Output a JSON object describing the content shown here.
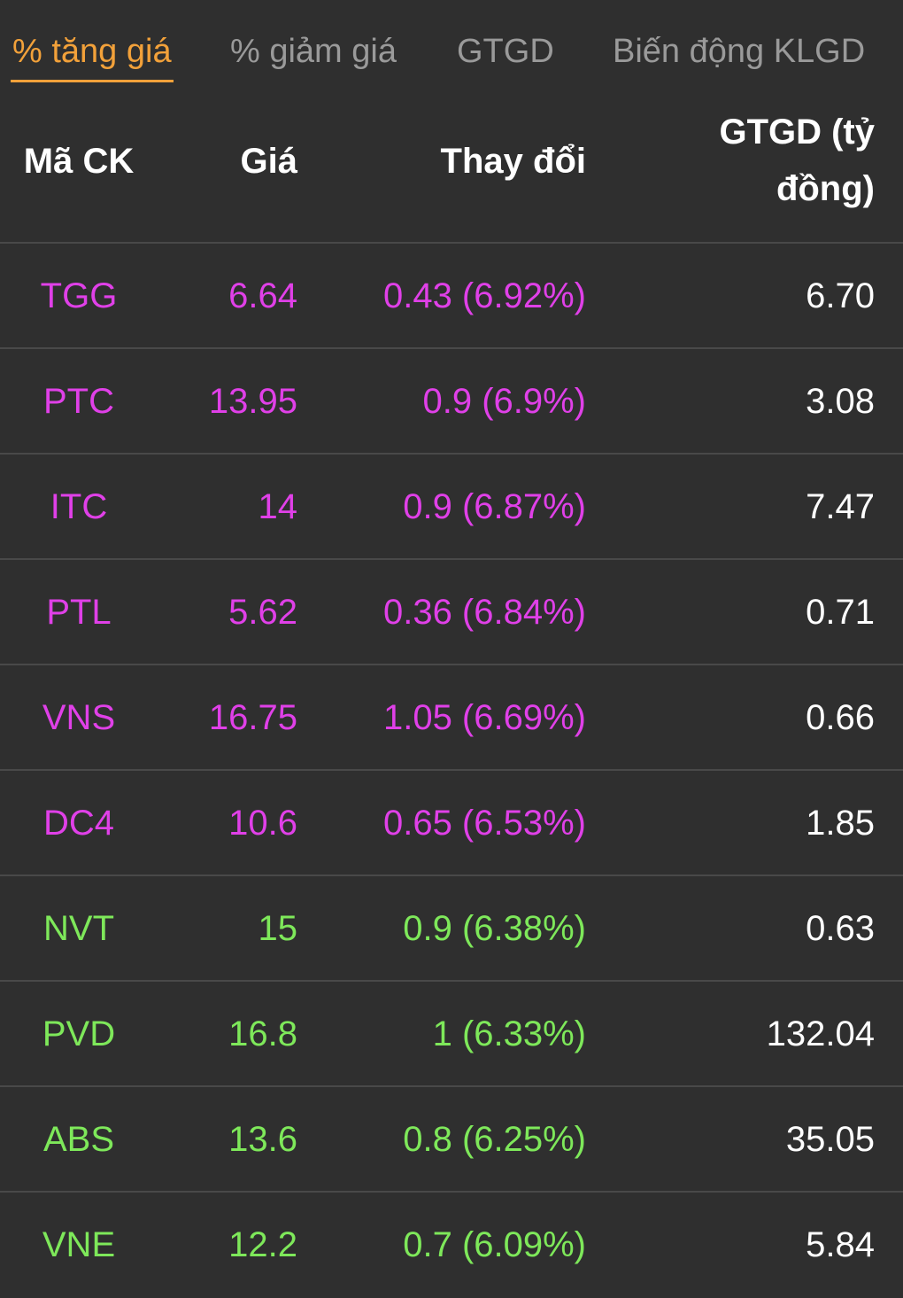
{
  "tabs": [
    {
      "label": "% tăng giá",
      "active": true
    },
    {
      "label": "% giảm giá",
      "active": false
    },
    {
      "label": "GTGD",
      "active": false
    },
    {
      "label": "Biến động KLGD",
      "active": false
    }
  ],
  "columns": {
    "code": "Mã CK",
    "price": "Giá",
    "change": "Thay đổi",
    "value_line1": "GTGD (tỷ",
    "value_line2": "đồng)"
  },
  "colors": {
    "accent": "#f2a13a",
    "ceiling": "#e040e8",
    "up": "#7ee85a",
    "text": "#ffffff",
    "muted": "#9a9a9a",
    "background": "#2f2f2f"
  },
  "rows": [
    {
      "code": "TGG",
      "price": "6.64",
      "change": "0.43 (6.92%)",
      "value": "6.70",
      "status": "ceiling"
    },
    {
      "code": "PTC",
      "price": "13.95",
      "change": "0.9 (6.9%)",
      "value": "3.08",
      "status": "ceiling"
    },
    {
      "code": "ITC",
      "price": "14",
      "change": "0.9 (6.87%)",
      "value": "7.47",
      "status": "ceiling"
    },
    {
      "code": "PTL",
      "price": "5.62",
      "change": "0.36 (6.84%)",
      "value": "0.71",
      "status": "ceiling"
    },
    {
      "code": "VNS",
      "price": "16.75",
      "change": "1.05 (6.69%)",
      "value": "0.66",
      "status": "ceiling"
    },
    {
      "code": "DC4",
      "price": "10.6",
      "change": "0.65 (6.53%)",
      "value": "1.85",
      "status": "ceiling"
    },
    {
      "code": "NVT",
      "price": "15",
      "change": "0.9 (6.38%)",
      "value": "0.63",
      "status": "up"
    },
    {
      "code": "PVD",
      "price": "16.8",
      "change": "1 (6.33%)",
      "value": "132.04",
      "status": "up"
    },
    {
      "code": "ABS",
      "price": "13.6",
      "change": "0.8 (6.25%)",
      "value": "35.05",
      "status": "up"
    },
    {
      "code": "VNE",
      "price": "12.2",
      "change": "0.7 (6.09%)",
      "value": "5.84",
      "status": "up"
    }
  ]
}
